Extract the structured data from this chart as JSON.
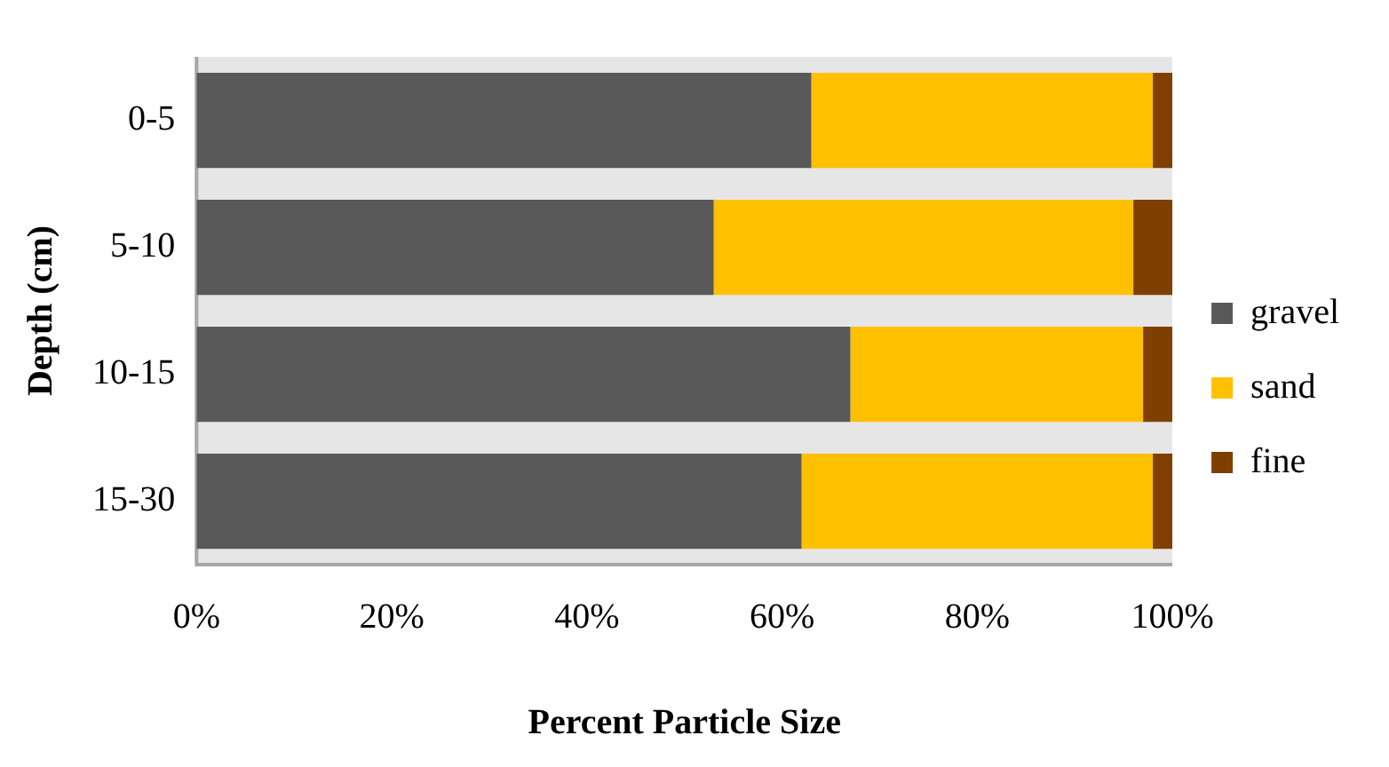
{
  "chart_data": {
    "type": "bar",
    "orientation": "horizontal",
    "stacked": true,
    "xlabel": "Percent Particle Size",
    "ylabel": "Depth (cm)",
    "categories": [
      "0-5",
      "5-10",
      "10-15",
      "15-30"
    ],
    "series": [
      {
        "name": "gravel",
        "color": "#595959",
        "values": [
          63,
          53,
          67,
          62
        ]
      },
      {
        "name": "sand",
        "color": "#ffc000",
        "values": [
          35,
          43,
          30,
          36
        ]
      },
      {
        "name": "fine",
        "color": "#7f3f00",
        "values": [
          2,
          4,
          3,
          2
        ]
      }
    ],
    "xlim": [
      0,
      100
    ],
    "xticks": [
      {
        "value": 0,
        "label": "0%"
      },
      {
        "value": 20,
        "label": "20%"
      },
      {
        "value": 40,
        "label": "40%"
      },
      {
        "value": 60,
        "label": "60%"
      },
      {
        "value": 80,
        "label": "80%"
      },
      {
        "value": 100,
        "label": "100%"
      }
    ],
    "grid": false,
    "legend": "right"
  }
}
